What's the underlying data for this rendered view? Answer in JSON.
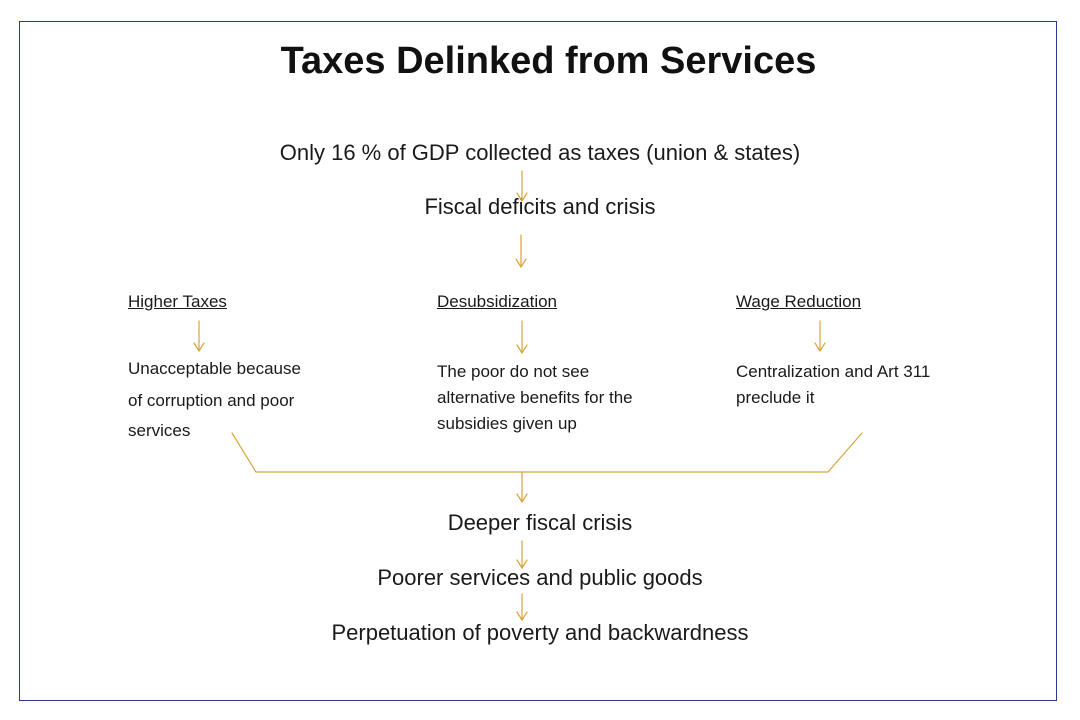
{
  "title": "Taxes Delinked from Services",
  "flow": {
    "step1": "Only 16 % of GDP collected as taxes (union & states)",
    "step2": "Fiscal deficits and crisis"
  },
  "branches": [
    {
      "heading": "Higher Taxes",
      "lines": [
        "Unacceptable because",
        "of corruption and poor",
        "services"
      ]
    },
    {
      "heading": "Desubsidization",
      "lines": [
        "The poor do not see",
        "alternative benefits for the",
        "subsidies given up"
      ]
    },
    {
      "heading": "Wage Reduction",
      "lines": [
        "Centralization and Art 311",
        "preclude it"
      ]
    }
  ],
  "outcomes": {
    "step3": "Deeper fiscal crisis",
    "step4": "Poorer services and public goods",
    "step5": "Perpetuation of poverty and backwardness"
  },
  "colors": {
    "connector": "#d9a43a",
    "frame": "#2b3a8c"
  }
}
